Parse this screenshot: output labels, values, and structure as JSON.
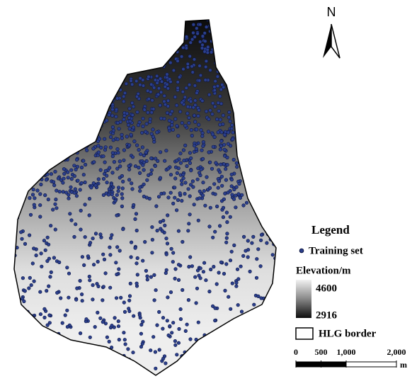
{
  "north_arrow": {
    "label": "N"
  },
  "legend": {
    "title": "Legend",
    "items": [
      {
        "label": "Training set"
      },
      {
        "label": "HLG border"
      }
    ],
    "elevation": {
      "title": "Elevation/m",
      "max": 4600,
      "min": 2916
    }
  },
  "scale_bar": {
    "ticks": [
      0,
      500,
      {
        "value": 1000,
        "label": "1,000"
      },
      {
        "value": 2000,
        "label": "2,000"
      }
    ],
    "unit": "m"
  }
}
